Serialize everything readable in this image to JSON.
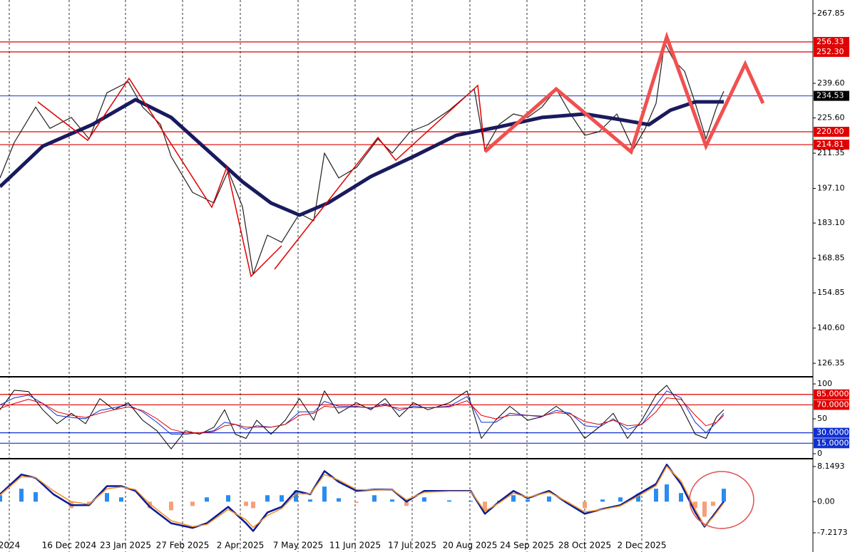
{
  "chart_data": [
    {
      "type": "line",
      "xlim": [
        0,
        228
      ],
      "ylim": [
        121.2,
        273.3
      ],
      "yticks": [
        267.85,
        {
          "value": 239.6,
          "label": "239.60"
        },
        {
          "value": 225.6,
          "label": "225.60"
        },
        211.35,
        {
          "value": 197.1,
          "label": "197.10"
        },
        {
          "value": 183.1,
          "label": "183.10"
        },
        168.85,
        154.85,
        {
          "value": 140.6,
          "label": "140.60"
        },
        126.35
      ],
      "levels": [
        256.33,
        {
          "value": 252.3,
          "label": "252.30"
        },
        234.53,
        {
          "value": 220,
          "label": "220.00"
        },
        214.81
      ],
      "level_colors": [
        "#e00000",
        "#e00000",
        "#000000",
        "#e00000",
        "#e00000"
      ],
      "level_line_colors": [
        "#e00000",
        "#e00000",
        "#3050d0",
        "#e00000",
        "#e00000"
      ],
      "series": [
        {
          "color": "#202020",
          "width": 1.2,
          "x": [
            0,
            4,
            10,
            14,
            20,
            25,
            30,
            36,
            40,
            45,
            48,
            54,
            60,
            64,
            68,
            71,
            75,
            79,
            84,
            88,
            91,
            95,
            100,
            106,
            110,
            115,
            120,
            126,
            133,
            136,
            140,
            144,
            148,
            152,
            156,
            160,
            164,
            168,
            173,
            177.6,
            181,
            184,
            186.4,
            189,
            192,
            195,
            198,
            201,
            203
          ],
          "values": [
            201.3,
            215.7,
            230,
            221.4,
            225.8,
            217.1,
            235.8,
            240.2,
            230,
            223,
            210,
            195.5,
            191.2,
            204.2,
            189.8,
            162.4,
            178.2,
            175.3,
            186.9,
            184,
            211.4,
            201.3,
            205.6,
            217.1,
            211.4,
            220,
            222.9,
            228.7,
            237.3,
            212.8,
            223,
            227.2,
            225.8,
            230,
            237.3,
            227.2,
            218.6,
            220,
            227.2,
            212.8,
            221.4,
            231.5,
            256,
            248.8,
            244.5,
            231.5,
            217.1,
            230,
            236.4
          ]
        },
        {
          "color": "#1a1a5e",
          "width": 5,
          "x": [
            0,
            12,
            26,
            38,
            48,
            58,
            68,
            76,
            84,
            92,
            104,
            116,
            128,
            140,
            152,
            164,
            174,
            182,
            188,
            195,
            203
          ],
          "values": [
            197.8,
            214.2,
            223,
            233,
            225.8,
            212.8,
            199.8,
            191.2,
            186.3,
            191.2,
            201.9,
            210,
            218.6,
            222,
            225.8,
            227.2,
            224.9,
            222.9,
            228.7,
            232.1,
            232.1
          ]
        }
      ]
    },
    {
      "type": "line",
      "xlim": [
        0,
        228
      ],
      "ylim": [
        -6.1,
        108.2
      ],
      "yticks": [
        100,
        50,
        0
      ],
      "levels": [
        {
          "value": 85,
          "label": "85.0000"
        },
        {
          "value": 70,
          "label": "70.0000"
        },
        {
          "value": 30,
          "label": "30.0000"
        },
        {
          "value": 15,
          "label": "15.0000"
        }
      ],
      "level_colors": [
        "#e00000",
        "#e00000",
        "#1030d0",
        "#1030d0"
      ],
      "level_line_colors": [
        "#e00000",
        "#e00000",
        "#1030d0",
        "#1030d0"
      ],
      "x": [
        0,
        4,
        8,
        12,
        16,
        20,
        24,
        28,
        32,
        36,
        40,
        44,
        48,
        52,
        56,
        60,
        63,
        66,
        69,
        72,
        76,
        80,
        84,
        88,
        91,
        95,
        100,
        104,
        108,
        112,
        116,
        120,
        126,
        131,
        135,
        139,
        143,
        148,
        152,
        156,
        160,
        164,
        168,
        172,
        176,
        180,
        184,
        187,
        191,
        195,
        198,
        201,
        203
      ],
      "series": [
        {
          "color": "#000000",
          "width": 1,
          "values": [
            63,
            91,
            89,
            63,
            43,
            58,
            43,
            79,
            63,
            73,
            48,
            33,
            7,
            33,
            28,
            38,
            63,
            28,
            22,
            48,
            28,
            48,
            79,
            48,
            90,
            58,
            73,
            63,
            79,
            53,
            73,
            63,
            73,
            90,
            22,
            48,
            68,
            48,
            53,
            68,
            53,
            22,
            38,
            58,
            22,
            48,
            84,
            98,
            68,
            28,
            22,
            53,
            63
          ]
        },
        {
          "color": "#1030d0",
          "width": 1,
          "values": [
            70,
            80,
            84,
            72,
            55,
            52,
            50,
            62,
            66,
            70,
            60,
            45,
            28,
            28,
            30,
            33,
            45,
            42,
            35,
            40,
            38,
            42,
            60,
            60,
            75,
            68,
            68,
            65,
            72,
            62,
            68,
            66,
            68,
            82,
            45,
            45,
            58,
            55,
            53,
            62,
            58,
            40,
            38,
            50,
            35,
            42,
            70,
            90,
            80,
            45,
            30,
            45,
            58
          ]
        },
        {
          "color": "#e00000",
          "width": 1,
          "values": [
            65,
            72,
            78,
            72,
            60,
            55,
            52,
            58,
            63,
            67,
            62,
            50,
            35,
            30,
            30,
            32,
            40,
            42,
            38,
            38,
            38,
            42,
            55,
            58,
            68,
            66,
            67,
            66,
            69,
            65,
            66,
            66,
            67,
            76,
            55,
            50,
            55,
            55,
            54,
            59,
            57,
            46,
            42,
            48,
            40,
            42,
            60,
            80,
            78,
            55,
            40,
            45,
            55
          ]
        }
      ]
    },
    {
      "type": "line",
      "xlim": [
        0,
        228
      ],
      "ylim": [
        -11.68,
        9.64
      ],
      "yticks": [
        8.1493,
        {
          "value": 0,
          "label": "0.00"
        },
        -7.2173
      ],
      "x": [
        0,
        6,
        10,
        15,
        20,
        25,
        30,
        34,
        38,
        42,
        48,
        54,
        58,
        64,
        69,
        71,
        75,
        79,
        83,
        87,
        91,
        95,
        100,
        105,
        110,
        114,
        119,
        126,
        132,
        136,
        140,
        144,
        148,
        154,
        159,
        164,
        169,
        174,
        179,
        184,
        187,
        191,
        195,
        197.6,
        200,
        203
      ],
      "xticks": [
        {
          "value": 2.6,
          "label": "2024"
        },
        {
          "value": 19.4,
          "label": "16 Dec 2024"
        },
        {
          "value": 35.2,
          "label": "23 Jan 2025"
        },
        {
          "value": 51.2,
          "label": "27 Feb 2025"
        },
        {
          "value": 67.4,
          "label": "2 Apr 2025"
        },
        {
          "value": 83.6,
          "label": "7 May 2025"
        },
        {
          "value": 99.6,
          "label": "11 Jun 2025"
        },
        {
          "value": 115.6,
          "label": "17 Jul 2025"
        },
        {
          "value": 131.8,
          "label": "20 Aug 2025"
        },
        {
          "value": 147.8,
          "label": "24 Sep 2025"
        },
        {
          "value": 164,
          "label": "28 Oct 2025"
        },
        {
          "value": 180,
          "label": "2 Dec 2025"
        }
      ],
      "series": [
        {
          "type": "bar",
          "color": "#2a8cf0",
          "negative_color": "#f4a07a",
          "values": [
            1.5,
            3,
            2.2,
            0,
            -1.5,
            -0.5,
            2,
            1,
            0,
            -1.5,
            -2,
            -1,
            1,
            1.5,
            -1,
            -1.5,
            1.5,
            1.5,
            2.5,
            0.5,
            3.5,
            0.8,
            -0.3,
            1.5,
            0.5,
            -1,
            1,
            0.3,
            0.2,
            -2,
            0.2,
            1.5,
            0.5,
            1.2,
            -0.3,
            -1.5,
            0.5,
            1,
            1.8,
            3,
            4,
            2,
            -1.5,
            -3.5,
            -1,
            3
          ]
        },
        {
          "color": "#0a1a9a",
          "width": 2.5,
          "values": [
            1.7,
            6.3,
            5.5,
            1.7,
            -0.8,
            -0.8,
            3.6,
            3.6,
            2.5,
            -1.2,
            -5,
            -6.1,
            -5,
            -1.2,
            -5,
            -6.8,
            -2.5,
            -1.2,
            2.5,
            1.7,
            7.1,
            4.6,
            2.5,
            2.8,
            2.8,
            0,
            2.5,
            2.5,
            2.5,
            -2.8,
            0,
            2.5,
            0.8,
            2.5,
            -0.3,
            -2.8,
            -1.7,
            -0.8,
            1.7,
            4.1,
            8.6,
            4.1,
            -2.5,
            -5.8,
            -3.3,
            0
          ]
        },
        {
          "color": "#f09020",
          "width": 1.5,
          "values": [
            1.5,
            5.8,
            5.6,
            2.5,
            0,
            -0.6,
            3,
            3.4,
            2.8,
            -0.5,
            -4.4,
            -5.8,
            -5.3,
            -1.8,
            -4.2,
            -6,
            -3.2,
            -1.6,
            1.8,
            1.8,
            6.3,
            5,
            2.8,
            2.7,
            2.8,
            0.4,
            2.2,
            2.4,
            2.4,
            -2.2,
            -0.3,
            2,
            1,
            2.2,
            0,
            -2.4,
            -1.8,
            -1,
            1.3,
            3.7,
            8.2,
            4.8,
            -1.8,
            -5.6,
            -3.6,
            -0.3
          ]
        }
      ]
    }
  ]
}
